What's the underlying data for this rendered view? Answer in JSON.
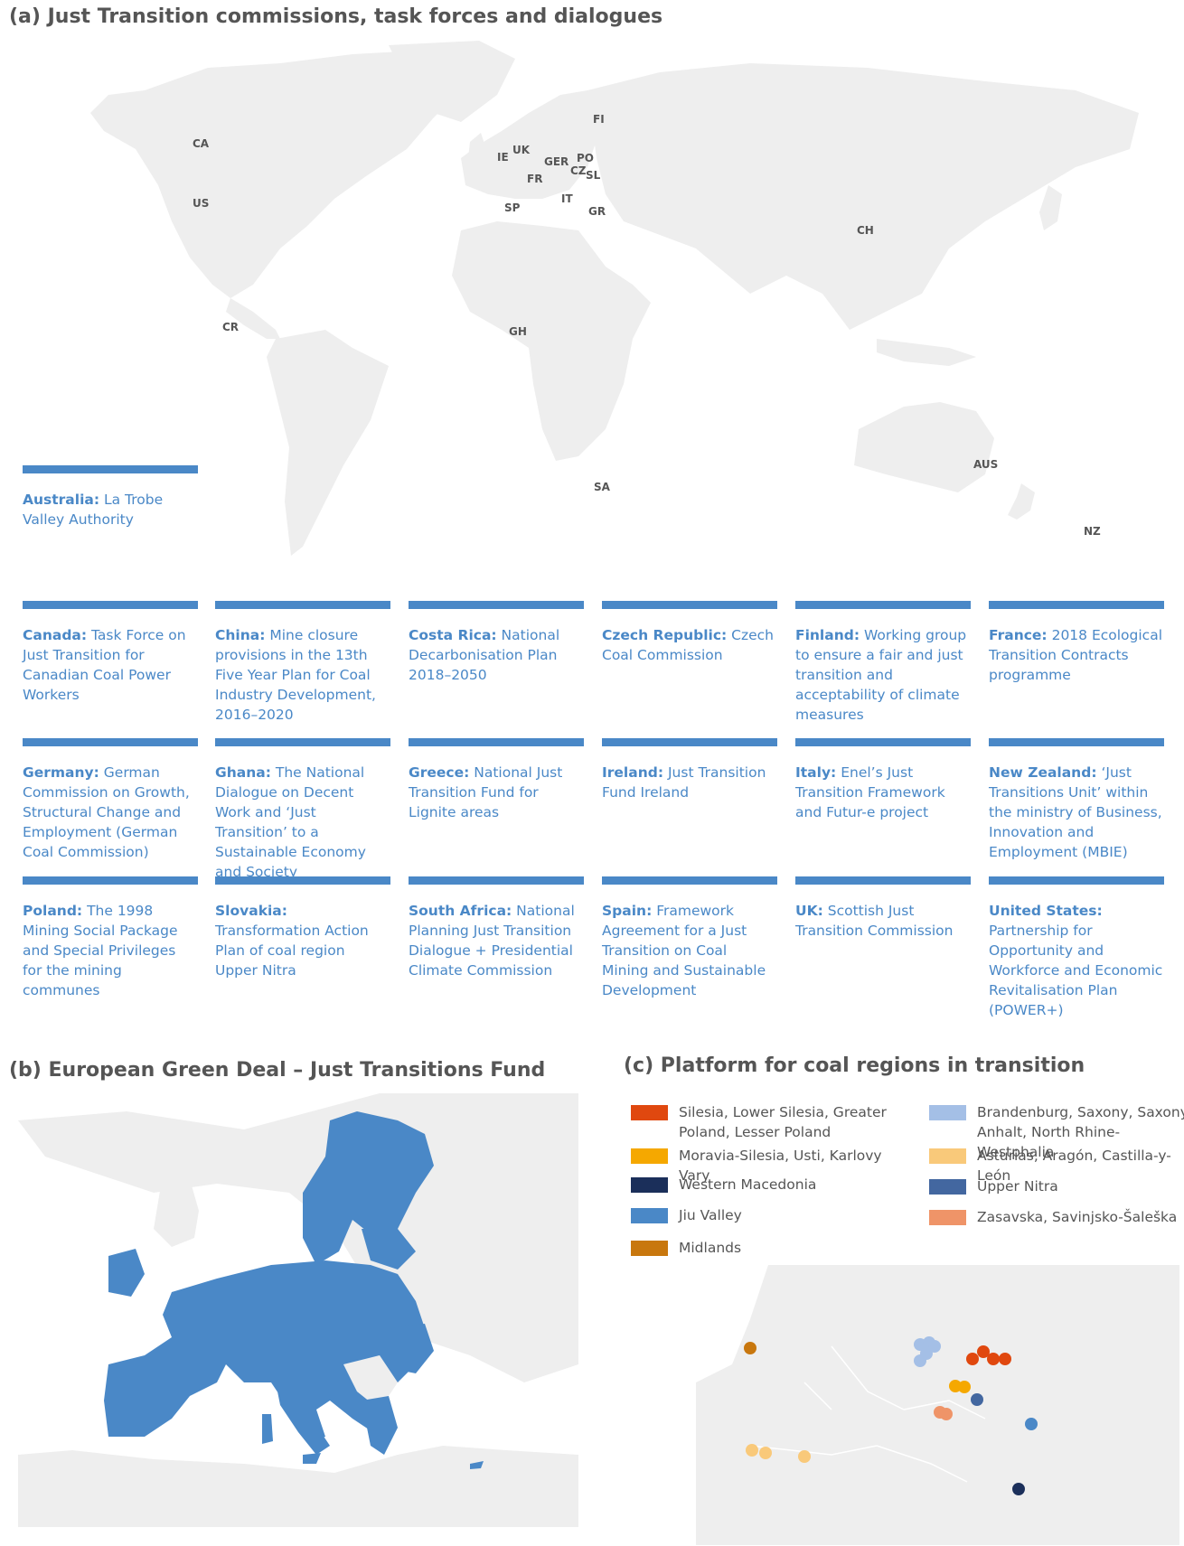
{
  "colors": {
    "land": "#eeeeee",
    "eu_fill": "#4a88c7",
    "accent_blue": "#4a88c7",
    "title_grey": "#555555"
  },
  "panel_a": {
    "title": "(a) Just Transition commissions, task forces and dialogues",
    "country_codes": [
      "CA",
      "US",
      "CR",
      "IE",
      "UK",
      "GER",
      "PO",
      "FI",
      "CZ",
      "SL",
      "FR",
      "IT",
      "SP",
      "GR",
      "GH",
      "CH",
      "SA",
      "AUS",
      "NZ"
    ],
    "entries": [
      {
        "country": "Australia:",
        "text": "La Trobe Valley Authority"
      },
      {
        "country": "Canada:",
        "text": "Task Force on Just Transition for Canadian Coal Power Workers"
      },
      {
        "country": "China:",
        "text": "Mine closure provisions in the 13th Five Year Plan for Coal Industry Development, 2016–2020"
      },
      {
        "country": "Costa Rica:",
        "text": "National Decarbonisation Plan 2018–2050"
      },
      {
        "country": "Czech Republic:",
        "text": "Czech Coal Commission"
      },
      {
        "country": "Finland:",
        "text": "Working group to ensure a fair and just transition and acceptability of climate measures"
      },
      {
        "country": "France:",
        "text": "2018 Ecological Transition Contracts programme"
      },
      {
        "country": "Germany:",
        "text": "German Commission on Growth, Structural Change and Employment (German Coal Commission)"
      },
      {
        "country": "Ghana:",
        "text": "The National Dialogue on Decent Work and ‘Just Transition’ to a Sustainable Economy and Society"
      },
      {
        "country": "Greece:",
        "text": "National Just Transition Fund for Lignite areas"
      },
      {
        "country": "Ireland:",
        "text": "Just Transition Fund Ireland"
      },
      {
        "country": "Italy:",
        "text": "Enel’s Just Transition Framework and Futur-e project"
      },
      {
        "country": "New Zealand:",
        "text": "‘Just Transitions Unit’ within the ministry of Business, Innovation and Employment (MBIE)"
      },
      {
        "country": "Poland:",
        "text": "The 1998 Mining Social Package and Special Privileges for the mining communes"
      },
      {
        "country": "Slovakia:",
        "text": "Transformation Action Plan of coal region Upper Nitra"
      },
      {
        "country": "South Africa:",
        "text": "National Planning Just Transition Dialogue + Presidential Climate Commission"
      },
      {
        "country": "Spain:",
        "text": "Framework Agreement for a Just Transition on Coal Mining and Sustainable Development"
      },
      {
        "country": "UK:",
        "text": "Scottish Just Transition Commission"
      },
      {
        "country": "United States:",
        "text": "Partnership for Opportunity and Workforce and Economic Revitalisation Plan (POWER+)"
      }
    ]
  },
  "panel_b": {
    "title": "(b) European Green Deal – Just Transitions Fund"
  },
  "panel_c": {
    "title": "(c) Platform for coal regions in transition",
    "legend": [
      {
        "label": "Silesia, Lower Silesia, Greater Poland, Lesser Poland",
        "color": "#e0480f"
      },
      {
        "label": "Moravia-Silesia, Usti, Karlovy Vary",
        "color": "#f5a800"
      },
      {
        "label": "Western Macedonia",
        "color": "#1b2f5a"
      },
      {
        "label": "Jiu Valley",
        "color": "#4a88c7"
      },
      {
        "label": "Midlands",
        "color": "#c8770e"
      },
      {
        "label": "Brandenburg, Saxony, Saxony Anhalt, North Rhine-Westphalia",
        "color": "#a4bfe6"
      },
      {
        "label": "Asturias, Aragón, Castilla-y-León",
        "color": "#f9c97a"
      },
      {
        "label": "Upper Nitra",
        "color": "#4367a0"
      },
      {
        "label": "Zasavska, Savinjsko-Šaleška",
        "color": "#ef9468"
      }
    ]
  }
}
